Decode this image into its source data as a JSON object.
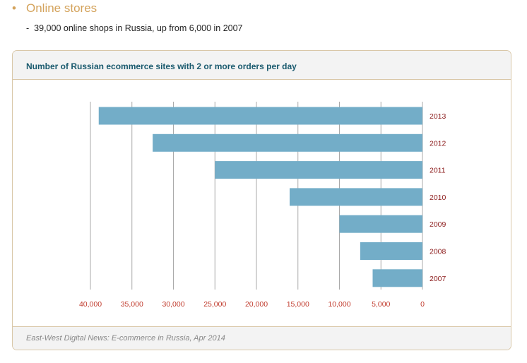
{
  "bullet": {
    "symbol": "•",
    "text": "Online stores"
  },
  "subbullet": {
    "dash": "-",
    "text": "39,000 online shops in Russia, up from 6,000 in 2007"
  },
  "colors": {
    "bar": "#73adc8",
    "grid": "#aaaaaa",
    "year_label": "#8b1a1a",
    "tick_label": "#c0392b"
  },
  "chart_data": {
    "type": "bar",
    "orientation": "horizontal",
    "direction": "right-to-left",
    "title": "Number of Russian ecommerce sites with 2 or more orders per day",
    "categories": [
      "2013",
      "2012",
      "2011",
      "2010",
      "2009",
      "2008",
      "2007"
    ],
    "values": [
      39000,
      32500,
      25000,
      16000,
      10000,
      7500,
      6000
    ],
    "xlim": [
      0,
      40000
    ],
    "x_ticks": [
      40000,
      35000,
      30000,
      25000,
      20000,
      15000,
      10000,
      5000,
      0
    ],
    "x_tick_labels": [
      "40,000",
      "35,000",
      "30,000",
      "25,000",
      "20,000",
      "15,000",
      "10,000",
      "5,000",
      "0"
    ],
    "grid": true,
    "source": "East-West Digital News: E-commerce in Russia, Apr 2014"
  }
}
